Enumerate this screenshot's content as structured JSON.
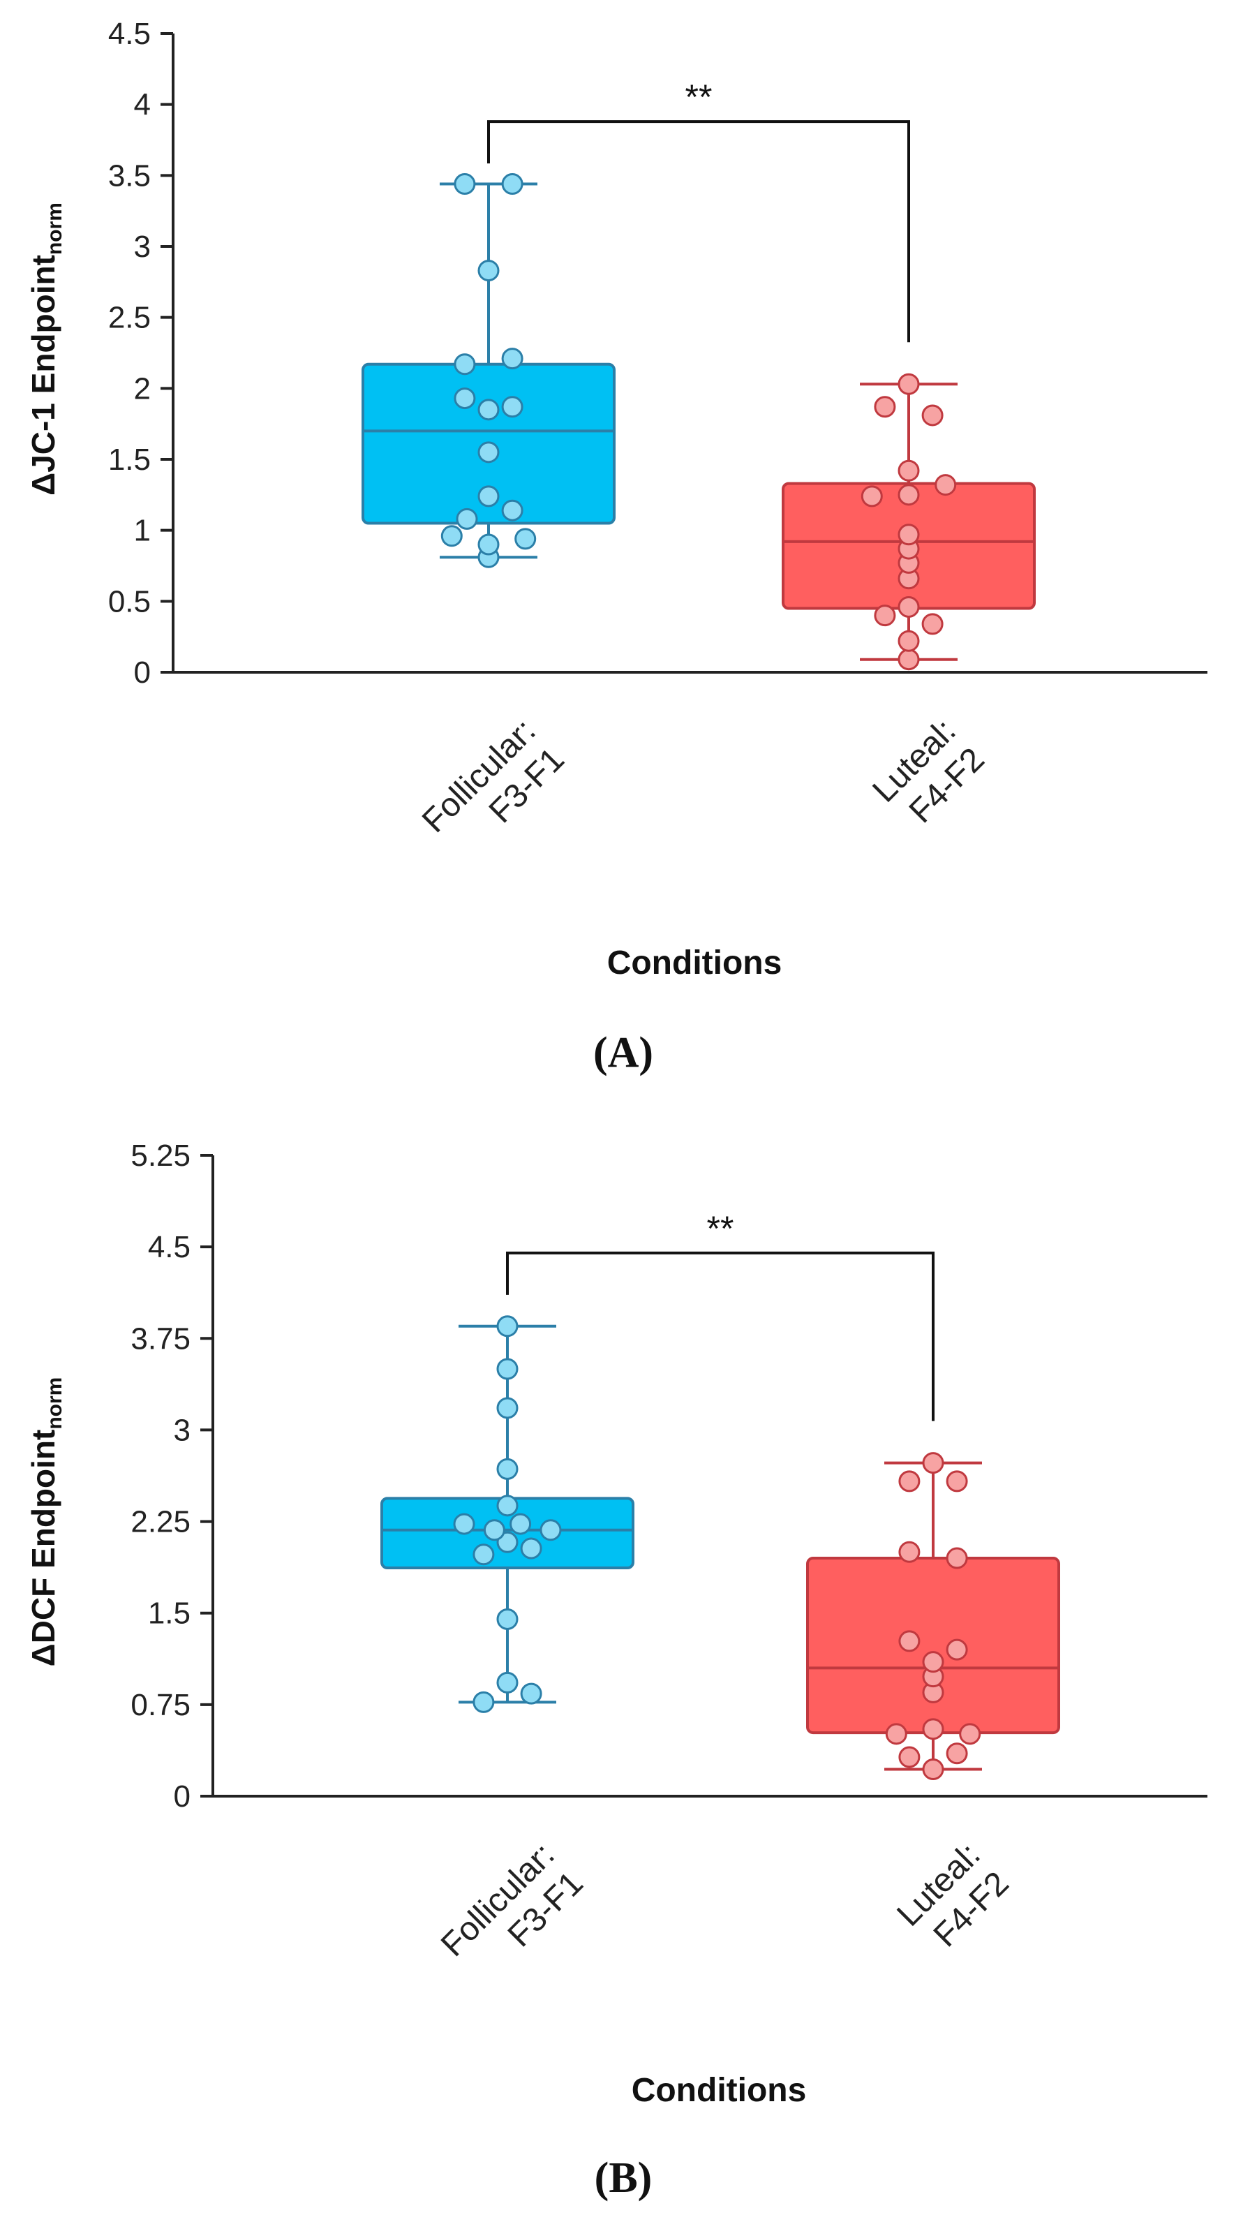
{
  "chart_data": [
    {
      "type": "box",
      "panel_label": "(A)",
      "ylabel": "ΔJC-1 Endpoint",
      "ylabel_subscript": "norm",
      "xlabel": "Conditions",
      "ylim": [
        0,
        4.5
      ],
      "yticks": [
        "0",
        "0.5",
        "1",
        "1.5",
        "2",
        "2.5",
        "3",
        "3.5",
        "4",
        "4.5"
      ],
      "grid": false,
      "significance": {
        "label": "**",
        "between": [
          "Follicular: F3-F1",
          "Luteal: F4-F2"
        ],
        "y": 3.88
      },
      "categories": [
        {
          "label_line1": "Follicular:",
          "label_line2": "F3-F1",
          "box_color": "#00c0f3",
          "point_color": "#8fdcf5",
          "stroke_color": "#2b7fa8",
          "whisker_low": 0.81,
          "q1": 1.05,
          "median": 1.7,
          "q3": 2.17,
          "whisker_high": 3.44,
          "points": [
            {
              "value": 0.81,
              "offset": 0.0
            },
            {
              "value": 0.9,
              "offset": 0.0
            },
            {
              "value": 0.94,
              "offset": 0.85
            },
            {
              "value": 0.96,
              "offset": -0.85
            },
            {
              "value": 1.08,
              "offset": -0.5
            },
            {
              "value": 1.14,
              "offset": 0.55
            },
            {
              "value": 1.24,
              "offset": 0.0
            },
            {
              "value": 1.55,
              "offset": 0.0
            },
            {
              "value": 1.85,
              "offset": 0.0
            },
            {
              "value": 1.87,
              "offset": 0.55
            },
            {
              "value": 1.93,
              "offset": -0.55
            },
            {
              "value": 2.17,
              "offset": -0.55
            },
            {
              "value": 2.21,
              "offset": 0.55
            },
            {
              "value": 2.83,
              "offset": 0.0
            },
            {
              "value": 3.44,
              "offset": -0.55
            },
            {
              "value": 3.44,
              "offset": 0.55
            }
          ]
        },
        {
          "label_line1": "Luteal:",
          "label_line2": "F4-F2",
          "box_color": "#ff5f5f",
          "point_color": "#f7a3a3",
          "stroke_color": "#c0393f",
          "whisker_low": 0.09,
          "q1": 0.45,
          "median": 0.92,
          "q3": 1.33,
          "whisker_high": 2.03,
          "points": [
            {
              "value": 0.09,
              "offset": 0.0
            },
            {
              "value": 0.22,
              "offset": 0.0
            },
            {
              "value": 0.34,
              "offset": 0.55
            },
            {
              "value": 0.4,
              "offset": -0.55
            },
            {
              "value": 0.46,
              "offset": 0.0
            },
            {
              "value": 0.66,
              "offset": 0.0
            },
            {
              "value": 0.77,
              "offset": 0.0
            },
            {
              "value": 0.87,
              "offset": 0.0
            },
            {
              "value": 0.97,
              "offset": 0.0
            },
            {
              "value": 1.24,
              "offset": -0.85
            },
            {
              "value": 1.25,
              "offset": 0.0
            },
            {
              "value": 1.32,
              "offset": 0.85
            },
            {
              "value": 1.42,
              "offset": 0.0
            },
            {
              "value": 1.81,
              "offset": 0.55
            },
            {
              "value": 1.87,
              "offset": -0.55
            },
            {
              "value": 2.03,
              "offset": 0.0
            }
          ]
        }
      ]
    },
    {
      "type": "box",
      "panel_label": "(B)",
      "ylabel": "ΔDCF Endpoint",
      "ylabel_subscript": "norm",
      "xlabel": "Conditions",
      "ylim": [
        0,
        5.25
      ],
      "yticks": [
        "0",
        "0.75",
        "1.5",
        "2.25",
        "3",
        "3.75",
        "4.5",
        "5.25"
      ],
      "grid": false,
      "significance": {
        "label": "**",
        "between": [
          "Follicular: F3-F1",
          "Luteal: F4-F2"
        ],
        "y": 4.45
      },
      "categories": [
        {
          "label_line1": "Follicular:",
          "label_line2": "F3-F1",
          "box_color": "#00c0f3",
          "point_color": "#8fdcf5",
          "stroke_color": "#2b7fa8",
          "whisker_low": 0.77,
          "q1": 1.87,
          "median": 2.18,
          "q3": 2.44,
          "whisker_high": 3.85,
          "points": [
            {
              "value": 0.77,
              "offset": -0.55
            },
            {
              "value": 0.84,
              "offset": 0.55
            },
            {
              "value": 0.93,
              "offset": 0.0
            },
            {
              "value": 1.45,
              "offset": 0.0
            },
            {
              "value": 1.98,
              "offset": -0.55
            },
            {
              "value": 2.03,
              "offset": 0.55
            },
            {
              "value": 2.08,
              "offset": 0.0
            },
            {
              "value": 2.18,
              "offset": -0.3
            },
            {
              "value": 2.18,
              "offset": 1.0
            },
            {
              "value": 2.23,
              "offset": -1.0
            },
            {
              "value": 2.23,
              "offset": 0.3
            },
            {
              "value": 2.38,
              "offset": 0.0
            },
            {
              "value": 2.68,
              "offset": 0.0
            },
            {
              "value": 3.18,
              "offset": 0.0
            },
            {
              "value": 3.5,
              "offset": 0.0
            },
            {
              "value": 3.85,
              "offset": 0.0
            }
          ]
        },
        {
          "label_line1": "Luteal:",
          "label_line2": "F4-F2",
          "box_color": "#ff5f5f",
          "point_color": "#f7a3a3",
          "stroke_color": "#c0393f",
          "whisker_low": 0.22,
          "q1": 0.52,
          "median": 1.05,
          "q3": 1.95,
          "whisker_high": 2.73,
          "points": [
            {
              "value": 0.22,
              "offset": 0.0
            },
            {
              "value": 0.32,
              "offset": -0.55
            },
            {
              "value": 0.35,
              "offset": 0.55
            },
            {
              "value": 0.51,
              "offset": -0.85
            },
            {
              "value": 0.51,
              "offset": 0.85
            },
            {
              "value": 0.55,
              "offset": 0.0
            },
            {
              "value": 0.85,
              "offset": 0.0
            },
            {
              "value": 0.98,
              "offset": 0.0
            },
            {
              "value": 1.1,
              "offset": 0.0
            },
            {
              "value": 1.2,
              "offset": 0.55
            },
            {
              "value": 1.27,
              "offset": -0.55
            },
            {
              "value": 1.95,
              "offset": 0.55
            },
            {
              "value": 2.0,
              "offset": -0.55
            },
            {
              "value": 2.58,
              "offset": -0.55
            },
            {
              "value": 2.58,
              "offset": 0.55
            },
            {
              "value": 2.73,
              "offset": 0.0
            }
          ]
        }
      ]
    }
  ]
}
